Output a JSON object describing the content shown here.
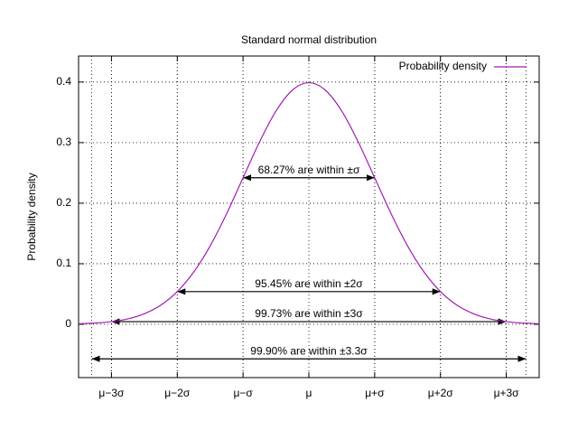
{
  "chart_data": {
    "type": "line",
    "title": "Standard normal distribution",
    "y_label": "Probability density",
    "x": [
      -3.5,
      -3.25,
      -3,
      -2.75,
      -2.5,
      -2.25,
      -2,
      -1.75,
      -1.5,
      -1.25,
      -1,
      -0.75,
      -0.5,
      -0.25,
      0,
      0.25,
      0.5,
      0.75,
      1,
      1.25,
      1.5,
      1.75,
      2,
      2.25,
      2.5,
      2.75,
      3,
      3.25,
      3.5
    ],
    "series": [
      {
        "name": "Probability density",
        "color": "#a01fb0",
        "values": [
          0.0009,
          0.002,
          0.0044,
          0.0091,
          0.0175,
          0.0317,
          0.054,
          0.0863,
          0.1295,
          0.1826,
          0.242,
          0.3011,
          0.3521,
          0.3867,
          0.3989,
          0.3867,
          0.3521,
          0.3011,
          0.242,
          0.1826,
          0.1295,
          0.0863,
          0.054,
          0.0317,
          0.0175,
          0.0091,
          0.0044,
          0.002,
          0.0009
        ]
      }
    ],
    "xlim": [
      -3.5,
      3.5
    ],
    "ylim": [
      -0.088,
      0.443
    ],
    "xticks": [
      {
        "value": -3,
        "label": "μ−3σ"
      },
      {
        "value": -2,
        "label": "μ−2σ"
      },
      {
        "value": -1,
        "label": "μ−σ"
      },
      {
        "value": 0,
        "label": "μ"
      },
      {
        "value": 1,
        "label": "μ+σ"
      },
      {
        "value": 2,
        "label": "μ+2σ"
      },
      {
        "value": 3,
        "label": "μ+3σ"
      }
    ],
    "yticks": [
      0,
      0.1,
      0.2,
      0.3,
      0.4
    ],
    "grid": true,
    "legend": "top-right",
    "annotations": [
      {
        "text": "68.27% are within ±σ",
        "x": [
          -1,
          1
        ],
        "y": 0.242
      },
      {
        "text": "95.45% are within ±2σ",
        "x": [
          -2,
          2
        ],
        "y": 0.054
      },
      {
        "text": "99.73% are within ±3σ",
        "x": [
          -3,
          3
        ],
        "y": 0.0044
      },
      {
        "text": "99.90% are within ±3.3σ",
        "x": [
          -3.3,
          3.3
        ],
        "y": -0.057
      }
    ]
  }
}
